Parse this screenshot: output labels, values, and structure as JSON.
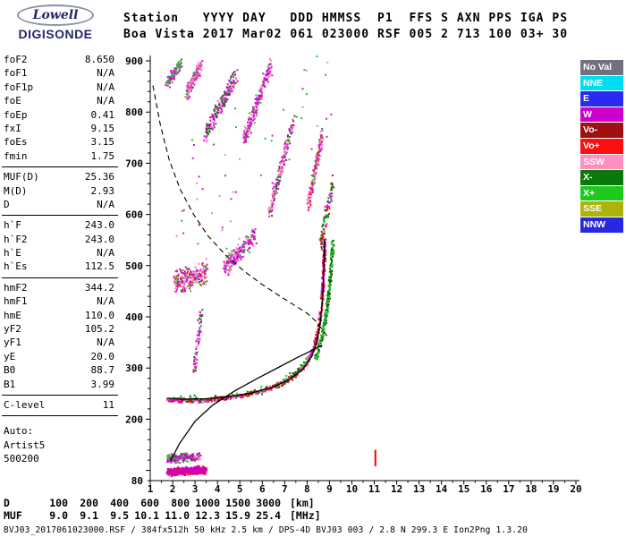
{
  "branding": {
    "logo_top": "Lowell",
    "logo_bottom": "DIGISONDE"
  },
  "header": {
    "line1": "Station   YYYY DAY   DDD HMMSS  P1  FFS S AXN PPS IGA PS",
    "line2": "Boa Vista 2017 Mar02 061 023000 RSF 005 2 713 100 03+ 30"
  },
  "params": {
    "groups": [
      {
        "rows": [
          [
            "foF2",
            "8.650"
          ],
          [
            "foF1",
            "N/A"
          ],
          [
            "foF1p",
            "N/A"
          ],
          [
            "foE",
            "N/A"
          ],
          [
            "foEp",
            "0.41"
          ],
          [
            "fxI",
            "9.15"
          ],
          [
            "foEs",
            "3.15"
          ],
          [
            "fmin",
            "1.75"
          ]
        ]
      },
      {
        "rows": [
          [
            "MUF(D)",
            "25.36"
          ],
          [
            "M(D)",
            "2.93"
          ],
          [
            "D",
            "N/A"
          ]
        ]
      },
      {
        "rows": [
          [
            "h`F",
            "243.0"
          ],
          [
            "h`F2",
            "243.0"
          ],
          [
            "h`E",
            "N/A"
          ],
          [
            "h`Es",
            "112.5"
          ]
        ]
      },
      {
        "rows": [
          [
            "hmF2",
            "344.2"
          ],
          [
            "hmF1",
            "N/A"
          ],
          [
            "hmE",
            "110.0"
          ],
          [
            "yF2",
            "105.2"
          ],
          [
            "yF1",
            "N/A"
          ],
          [
            "yE",
            "20.0"
          ],
          [
            "B0",
            "88.7"
          ],
          [
            "B1",
            "3.99"
          ]
        ]
      },
      {
        "rows": [
          [
            "C-level",
            "11"
          ]
        ]
      },
      {
        "rows": [
          [
            "Auto:",
            ""
          ],
          [
            "Artist5",
            ""
          ],
          [
            "500200",
            ""
          ]
        ]
      }
    ]
  },
  "legend": {
    "items": [
      {
        "label": "No Val",
        "color": "#70707e"
      },
      {
        "label": "NNE",
        "color": "#00dcf0"
      },
      {
        "label": "E",
        "color": "#2a2af0"
      },
      {
        "label": "W",
        "color": "#cd00cd"
      },
      {
        "label": "Vo-",
        "color": "#a01010"
      },
      {
        "label": "Vo+",
        "color": "#fb0f0f"
      },
      {
        "label": "SSW",
        "color": "#ff8fbe"
      },
      {
        "label": "X-",
        "color": "#0a780a"
      },
      {
        "label": "X+",
        "color": "#1ec91e"
      },
      {
        "label": "SSE",
        "color": "#aab40a"
      },
      {
        "label": "NNW",
        "color": "#2828e0"
      }
    ]
  },
  "chart_data": {
    "type": "scatter",
    "description": "Digisonde ionogram: echo virtual height vs frequency with ARTIST traces",
    "x_axis": {
      "unit": "MHz",
      "min": 1,
      "max": 20,
      "tick_labels": [
        1,
        2,
        3,
        4,
        5,
        6,
        7,
        8,
        9,
        10,
        11,
        12,
        13,
        14,
        15,
        16,
        17,
        18,
        19,
        20
      ]
    },
    "y_axis": {
      "unit": "km",
      "min": 80,
      "max": 900,
      "tick_labels": [
        900,
        800,
        700,
        600,
        500,
        400,
        300,
        200,
        80
      ]
    },
    "clusters": [
      {
        "name": "f-trace-o",
        "pts": [
          [
            1.75,
            240
          ],
          [
            2.2,
            238
          ],
          [
            3.0,
            238
          ],
          [
            4.0,
            241
          ],
          [
            5.0,
            247
          ],
          [
            6.0,
            257
          ],
          [
            6.8,
            270
          ],
          [
            7.4,
            287
          ],
          [
            7.9,
            308
          ],
          [
            8.25,
            338
          ],
          [
            8.45,
            372
          ],
          [
            8.6,
            418
          ],
          [
            8.68,
            468
          ],
          [
            8.73,
            515
          ],
          [
            8.76,
            552
          ]
        ],
        "spread": 5,
        "fspread": 0.12,
        "count": 780,
        "size": 2,
        "colors": [
          "#f40000",
          "#ff7eb4",
          "#d816d8",
          "#f40000",
          "#c40000"
        ]
      },
      {
        "name": "f-trace-x",
        "pts": [
          [
            8.35,
            318
          ],
          [
            8.6,
            356
          ],
          [
            8.8,
            402
          ],
          [
            8.95,
            452
          ],
          [
            9.05,
            502
          ],
          [
            9.12,
            552
          ]
        ],
        "spread": 6,
        "fspread": 0.12,
        "count": 230,
        "size": 2,
        "colors": [
          "#0a780a",
          "#1ec91e",
          "#0a5f0a"
        ]
      },
      {
        "name": "f-trace-green-fringe",
        "pts": [
          [
            2.0,
            243
          ],
          [
            3.5,
            242
          ],
          [
            5.0,
            250
          ],
          [
            6.5,
            264
          ],
          [
            7.5,
            292
          ],
          [
            8.1,
            323
          ]
        ],
        "spread": 8,
        "fspread": 0.15,
        "count": 90,
        "size": 2,
        "colors": [
          "#0a780a",
          "#1ec91e"
        ]
      },
      {
        "name": "es-layer-dense",
        "f1": 1.72,
        "f2": 3.45,
        "km1": 98,
        "km2": 103,
        "spread": 9,
        "count": 500,
        "size": 2,
        "colors": [
          "#d816d8",
          "#ff7eb4",
          "#cd00cd",
          "#f40000"
        ]
      },
      {
        "name": "es-layer-upper",
        "f1": 1.75,
        "f2": 3.2,
        "km1": 124,
        "km2": 129,
        "spread": 10,
        "count": 240,
        "size": 2,
        "colors": [
          "#d816d8",
          "#ff7eb4",
          "#1ec91e",
          "#cd00cd"
        ]
      },
      {
        "name": "second-hop-low",
        "f1": 2.05,
        "f2": 3.5,
        "km1": 468,
        "km2": 488,
        "spread": 28,
        "count": 210,
        "size": 2,
        "colors": [
          "#d816d8",
          "#ff7eb4",
          "#1ec91e",
          "#cd00cd",
          "#f40000"
        ]
      },
      {
        "name": "second-hop-rise",
        "f1": 4.25,
        "f2": 5.65,
        "km1": 495,
        "km2": 562,
        "spread": 24,
        "count": 190,
        "size": 2,
        "colors": [
          "#d816d8",
          "#ff7eb4",
          "#1ec91e",
          "#cd00cd"
        ]
      },
      {
        "name": "mid-spread-3mhz",
        "f1": 2.9,
        "f2": 3.25,
        "km1": 295,
        "km2": 408,
        "spread": 30,
        "count": 70,
        "size": 2,
        "colors": [
          "#d816d8",
          "#ff8fbe",
          "#0a780a"
        ]
      },
      {
        "name": "third-hop-a",
        "f1": 1.7,
        "f2": 2.35,
        "km1": 858,
        "km2": 896,
        "spread": 16,
        "count": 90,
        "size": 2,
        "colors": [
          "#d816d8",
          "#cd00cd",
          "#1ec91e"
        ]
      },
      {
        "name": "third-hop-b",
        "f1": 2.55,
        "f2": 3.25,
        "km1": 836,
        "km2": 894,
        "spread": 18,
        "count": 120,
        "size": 2,
        "colors": [
          "#d816d8",
          "#ff7eb4",
          "#1ec91e",
          "#cd00cd"
        ]
      },
      {
        "name": "third-hop-c",
        "f1": 3.4,
        "f2": 4.85,
        "km1": 756,
        "km2": 876,
        "spread": 20,
        "count": 200,
        "size": 2,
        "colors": [
          "#d816d8",
          "#ff7eb4",
          "#0a780a",
          "#cd00cd"
        ]
      },
      {
        "name": "third-hop-d",
        "f1": 5.15,
        "f2": 6.35,
        "km1": 748,
        "km2": 893,
        "spread": 20,
        "count": 200,
        "size": 2,
        "colors": [
          "#d816d8",
          "#ff7eb4",
          "#1ec91e",
          "#cd00cd"
        ]
      },
      {
        "name": "third-hop-e",
        "f1": 6.3,
        "f2": 7.35,
        "km1": 606,
        "km2": 784,
        "spread": 18,
        "count": 170,
        "size": 2,
        "colors": [
          "#d816d8",
          "#ff7eb4",
          "#0a780a",
          "#cd00cd"
        ]
      },
      {
        "name": "second-hop-asymptote",
        "f1": 8.0,
        "f2": 8.65,
        "km1": 618,
        "km2": 758,
        "spread": 18,
        "count": 150,
        "size": 2,
        "colors": [
          "#d816d8",
          "#ff7eb4",
          "#1ec91e",
          "#f40000"
        ]
      },
      {
        "name": "spread-f-top",
        "f1": 8.55,
        "f2": 9.15,
        "km1": 545,
        "km2": 665,
        "spread": 25,
        "count": 90,
        "size": 2,
        "colors": [
          "#f40000",
          "#1ec91e",
          "#0a780a",
          "#d816d8"
        ]
      },
      {
        "name": "diffuse-noise",
        "f1": 2.0,
        "f2": 9.0,
        "km1": 560,
        "km2": 880,
        "spread": 160,
        "count": 55,
        "size": 2,
        "colors": [
          "#1ec91e",
          "#d816d8",
          "#ff7eb4"
        ]
      }
    ],
    "curves": [
      {
        "name": "muf-transmission-curve",
        "style": "dashed",
        "pts": [
          [
            1.12,
            852
          ],
          [
            1.45,
            775
          ],
          [
            1.85,
            706
          ],
          [
            2.35,
            648
          ],
          [
            2.95,
            599
          ],
          [
            3.6,
            557
          ],
          [
            4.4,
            519
          ],
          [
            5.2,
            489
          ],
          [
            6.0,
            463
          ],
          [
            6.8,
            440
          ],
          [
            7.5,
            421
          ],
          [
            8.0,
            407
          ],
          [
            8.4,
            391
          ],
          [
            8.7,
            374
          ],
          [
            8.9,
            362
          ]
        ]
      },
      {
        "name": "o-trace-fit",
        "style": "solid",
        "pts": [
          [
            1.75,
            241
          ],
          [
            2.5,
            239
          ],
          [
            3.5,
            240
          ],
          [
            4.5,
            244
          ],
          [
            5.5,
            251
          ],
          [
            6.5,
            263
          ],
          [
            7.2,
            277
          ],
          [
            7.8,
            297
          ],
          [
            8.2,
            322
          ],
          [
            8.45,
            352
          ],
          [
            8.6,
            392
          ],
          [
            8.7,
            442
          ],
          [
            8.75,
            495
          ],
          [
            8.78,
            552
          ]
        ]
      },
      {
        "name": "true-height-profile",
        "style": "solid",
        "pts": [
          [
            1.9,
            118
          ],
          [
            2.3,
            152
          ],
          [
            3.0,
            196
          ],
          [
            3.8,
            228
          ],
          [
            4.8,
            256
          ],
          [
            5.8,
            280
          ],
          [
            6.8,
            303
          ],
          [
            7.5,
            319
          ],
          [
            8.1,
            332
          ],
          [
            8.5,
            341
          ],
          [
            8.68,
            344
          ]
        ]
      }
    ],
    "marks": [
      {
        "name": "interference-line",
        "f": 11.05,
        "km1": 108,
        "km2": 140,
        "color": "#f40000"
      }
    ]
  },
  "bottom": {
    "d_row": {
      "label": "D",
      "values": [
        "100",
        "200",
        "400",
        "600",
        "800",
        "1000",
        "1500",
        "3000"
      ],
      "unit": "[km]"
    },
    "muf_row": {
      "label": "MUF",
      "values": [
        "9.0",
        "9.1",
        "9.5",
        "10.1",
        "11.0",
        "12.3",
        "15.9",
        "25.4"
      ],
      "unit": "[MHz]"
    },
    "footer": "BVJ03_2017061023000.RSF / 384fx512h 50 kHz 2.5 km / DPS-4D BVJ03 003 / 2.8 N 299.3 E Ion2Png 1.3.20"
  }
}
